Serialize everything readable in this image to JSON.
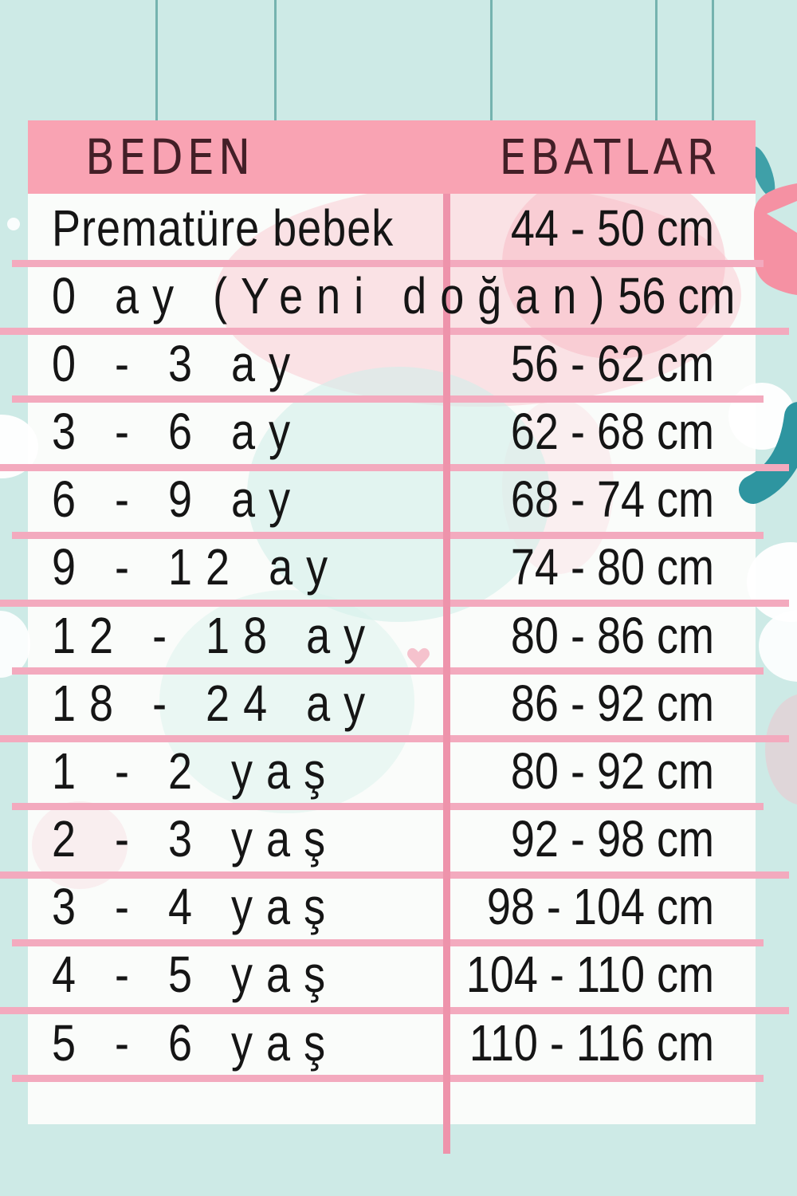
{
  "chart_data": {
    "type": "table",
    "title": "",
    "columns": [
      "BEDEN",
      "EBATLAR"
    ],
    "rows": [
      [
        "Prematüre bebek",
        "44 - 50 cm"
      ],
      [
        "0 ay (Yeni doğan)",
        "56 cm"
      ],
      [
        "0 - 3 ay",
        "56 - 62 cm"
      ],
      [
        "3 - 6 ay",
        "62 - 68 cm"
      ],
      [
        "6 - 9 ay",
        "68 - 74 cm"
      ],
      [
        "9 - 12 ay",
        "74 - 80 cm"
      ],
      [
        "12 - 18 ay",
        "80 - 86 cm"
      ],
      [
        "18 - 24 ay",
        "86 - 92 cm"
      ],
      [
        "1 - 2 yaş",
        "80 - 92 cm"
      ],
      [
        "2 - 3 yaş",
        "92 - 98 cm"
      ],
      [
        "3 - 4 yaş",
        "98 - 104 cm"
      ],
      [
        "4 - 5 yaş",
        "104 - 110 cm"
      ],
      [
        "5 - 6 yaş",
        "110 - 116 cm"
      ]
    ]
  },
  "colors": {
    "mint-bg": "#cdeae6",
    "string-teal": "#5fa5a1",
    "header-pink": "#f9a3b3",
    "header-text": "#431f27",
    "row-bg": "#fafcfa",
    "line-pink": "#f3aabe",
    "divider-pink": "#ee93ab",
    "row-text": "#151515",
    "teal-shape": "#2e95a0",
    "blob-pink": "#f591a3"
  }
}
